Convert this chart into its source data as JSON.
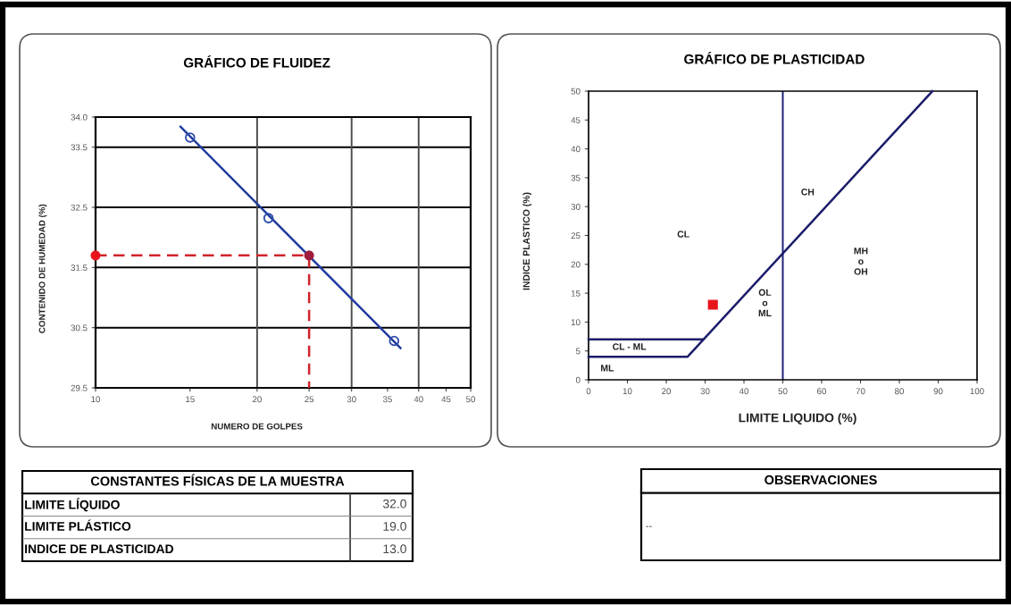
{
  "chart_data": [
    {
      "type": "scatter",
      "title": "GRÁFICO DE FLUIDEZ",
      "xlabel": "NUMERO DE GOLPES",
      "ylabel": "CONTENIDO DE HUMEDAD (%)",
      "log": "x",
      "xlim": [
        10,
        50
      ],
      "xticks": [
        10,
        15,
        20,
        25,
        30,
        35,
        40,
        45,
        50
      ],
      "ylim": [
        29.5,
        34
      ],
      "yticks": [
        29.5,
        30.5,
        31.5,
        32.5,
        33.5,
        {
          "value": 34,
          "label": "34.0"
        }
      ],
      "grid": "y",
      "ref_lines": [
        {
          "axis": "x",
          "value": 20,
          "color": "#4d4d4d"
        },
        {
          "axis": "x",
          "value": 30,
          "color": "#4d4d4d"
        },
        {
          "axis": "x",
          "value": 40,
          "color": "#4d4d4d"
        }
      ],
      "series": [
        {
          "type": "scatter",
          "x": [
            15,
            21,
            36
          ],
          "values": [
            33.66,
            32.32,
            30.28
          ],
          "color": "#2b4aa8",
          "marker": "circle"
        },
        {
          "type": "line",
          "x": [
            14.4,
            37.0
          ],
          "values": [
            33.84,
            30.16
          ],
          "color": "#1f3b9e"
        },
        {
          "type": "line",
          "x": [
            10,
            25,
            25
          ],
          "values": [
            31.7,
            31.7,
            29.5
          ],
          "color": "#d0232a",
          "line_style": "dashed"
        },
        {
          "type": "scatter",
          "x": [
            10,
            25
          ],
          "values": [
            31.7,
            31.7
          ],
          "colors": [
            "#e8141c",
            "#a01c3c"
          ],
          "marker": "circle"
        }
      ]
    },
    {
      "type": "line",
      "title": "GRÁFICO DE PLASTICIDAD",
      "xlabel": "LIMITE LIQUIDO (%)",
      "ylabel": "INDICE PLASTICO (%)",
      "xlim": [
        0,
        100
      ],
      "xticks": [
        0,
        10,
        20,
        30,
        40,
        50,
        60,
        70,
        80,
        90,
        100
      ],
      "ylim": [
        0,
        50
      ],
      "yticks": [
        0,
        5,
        10,
        15,
        20,
        25,
        30,
        35,
        40,
        45,
        50
      ],
      "ref_lines": [
        {
          "axis": "x",
          "value": 50,
          "color": "#1c1c7a"
        }
      ],
      "series": [
        {
          "type": "line",
          "x": [
            0,
            25.5,
            88.5
          ],
          "values": [
            4,
            4,
            50
          ],
          "color": "#1c1c6b"
        },
        {
          "type": "line",
          "x": [
            0,
            29.5
          ],
          "values": [
            7,
            7
          ],
          "color": "#1c1c6b"
        },
        {
          "type": "scatter",
          "x": [
            32
          ],
          "values": [
            13
          ],
          "colors": [
            "#e8141c"
          ],
          "marker": "square"
        }
      ],
      "annotations": [
        "CL",
        "CH",
        "MH\no\nOH",
        "OL\no\nML",
        "CL - ML",
        "ML"
      ]
    },
    {
      "type": "other",
      "title": "CONSTANTES FÍSICAS DE LA MUESTRA",
      "categories": [
        "LIMITE LÍQUIDO",
        "LIMITE PLÁSTICO",
        "INDICE DE PLASTICIDAD"
      ],
      "value_labels": [
        "32.0",
        "19.0",
        "13.0"
      ]
    },
    {
      "type": "other",
      "title": "OBSERVACIONES",
      "annotations": [
        "--"
      ]
    }
  ]
}
